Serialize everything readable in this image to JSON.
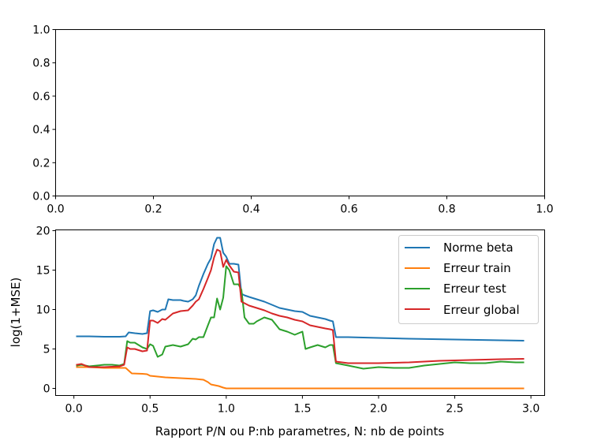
{
  "colors": {
    "norme_beta": "#1f77b4",
    "erreur_train": "#ff7f0e",
    "erreur_test": "#2ca02c",
    "erreur_global": "#d62728",
    "legend_border": "#cccccc"
  },
  "chart_data": [
    {
      "type": "line",
      "title": "",
      "xlabel": "",
      "ylabel": "",
      "xlim": [
        0,
        1
      ],
      "ylim": [
        0,
        1
      ],
      "xticks": [
        0.0,
        0.2,
        0.4,
        0.6,
        0.8,
        1.0
      ],
      "yticks": [
        0.0,
        0.2,
        0.4,
        0.6,
        0.8,
        1.0
      ],
      "xtick_labels": [
        "0.0",
        "0.2",
        "0.4",
        "0.6",
        "0.8",
        "1.0"
      ],
      "ytick_labels": [
        "0.0",
        "0.2",
        "0.4",
        "0.6",
        "0.8",
        "1.0"
      ],
      "grid": false,
      "series": []
    },
    {
      "type": "line",
      "title": "",
      "xlabel": "Rapport P/N ou P:nb parametres, N: nb de points",
      "ylabel": "log(1+MSE)",
      "xlim": [
        -0.12,
        3.09
      ],
      "ylim": [
        -0.9,
        20.1
      ],
      "xticks": [
        0.0,
        0.5,
        1.0,
        1.5,
        2.0,
        2.5,
        3.0
      ],
      "yticks": [
        0,
        5,
        10,
        15,
        20
      ],
      "xtick_labels": [
        "0.0",
        "0.5",
        "1.0",
        "1.5",
        "2.0",
        "2.5",
        "3.0"
      ],
      "ytick_labels": [
        "0",
        "5",
        "10",
        "15",
        "20"
      ],
      "grid": false,
      "legend_position": "top-right",
      "series": [
        {
          "name": "Norme beta",
          "color": "#1f77b4",
          "x": [
            0.02,
            0.1,
            0.2,
            0.3,
            0.34,
            0.36,
            0.4,
            0.45,
            0.48,
            0.5,
            0.52,
            0.55,
            0.58,
            0.6,
            0.62,
            0.65,
            0.7,
            0.72,
            0.75,
            0.78,
            0.8,
            0.82,
            0.85,
            0.88,
            0.9,
            0.92,
            0.94,
            0.96,
            0.98,
            1.0,
            1.02,
            1.05,
            1.08,
            1.1,
            1.12,
            1.15,
            1.2,
            1.25,
            1.3,
            1.35,
            1.4,
            1.45,
            1.5,
            1.55,
            1.6,
            1.65,
            1.68,
            1.7,
            1.72,
            1.8,
            2.0,
            2.2,
            2.5,
            2.8,
            2.95
          ],
          "y": [
            6.6,
            6.6,
            6.55,
            6.55,
            6.6,
            7.1,
            7.0,
            6.9,
            7.0,
            9.8,
            9.9,
            9.7,
            10.0,
            10.0,
            11.3,
            11.2,
            11.2,
            11.1,
            11.0,
            11.3,
            11.8,
            13.0,
            14.5,
            15.8,
            16.5,
            18.3,
            19.1,
            19.1,
            17.2,
            16.7,
            15.8,
            15.8,
            15.7,
            12.0,
            11.8,
            11.6,
            11.3,
            11.0,
            10.6,
            10.2,
            10.0,
            9.8,
            9.7,
            9.2,
            9.0,
            8.8,
            8.6,
            8.5,
            6.5,
            6.5,
            6.4,
            6.3,
            6.2,
            6.1,
            6.05
          ]
        },
        {
          "name": "Erreur train",
          "color": "#ff7f0e",
          "x": [
            0.02,
            0.1,
            0.2,
            0.3,
            0.34,
            0.38,
            0.45,
            0.48,
            0.5,
            0.6,
            0.7,
            0.8,
            0.85,
            0.88,
            0.9,
            0.95,
            0.98,
            1.0,
            1.05,
            1.5,
            2.0,
            2.5,
            2.95
          ],
          "y": [
            2.7,
            2.7,
            2.6,
            2.6,
            2.6,
            1.9,
            1.85,
            1.8,
            1.6,
            1.4,
            1.3,
            1.2,
            1.1,
            0.8,
            0.5,
            0.3,
            0.1,
            0.0,
            0.0,
            0.0,
            0.0,
            0.0,
            0.0
          ]
        },
        {
          "name": "Erreur test",
          "color": "#2ca02c",
          "x": [
            0.02,
            0.05,
            0.1,
            0.2,
            0.25,
            0.3,
            0.33,
            0.35,
            0.37,
            0.4,
            0.45,
            0.48,
            0.5,
            0.52,
            0.55,
            0.58,
            0.6,
            0.65,
            0.7,
            0.75,
            0.78,
            0.8,
            0.82,
            0.85,
            0.88,
            0.9,
            0.92,
            0.94,
            0.96,
            0.98,
            1.0,
            1.02,
            1.05,
            1.08,
            1.1,
            1.12,
            1.15,
            1.18,
            1.2,
            1.25,
            1.3,
            1.35,
            1.4,
            1.45,
            1.5,
            1.52,
            1.55,
            1.6,
            1.65,
            1.68,
            1.7,
            1.72,
            1.8,
            1.9,
            2.0,
            2.1,
            2.2,
            2.3,
            2.4,
            2.5,
            2.6,
            2.7,
            2.8,
            2.9,
            2.95
          ],
          "y": [
            2.9,
            3.0,
            2.8,
            3.0,
            3.0,
            2.9,
            3.1,
            6.0,
            5.8,
            5.8,
            5.2,
            5.0,
            5.6,
            5.4,
            4.0,
            4.3,
            5.3,
            5.5,
            5.3,
            5.6,
            6.3,
            6.2,
            6.5,
            6.5,
            8.0,
            9.0,
            9.0,
            11.4,
            10.0,
            11.5,
            15.5,
            15.0,
            13.2,
            13.2,
            12.5,
            9.0,
            8.2,
            8.2,
            8.5,
            9.0,
            8.7,
            7.5,
            7.2,
            6.8,
            7.2,
            5.0,
            5.2,
            5.5,
            5.2,
            5.5,
            5.5,
            3.2,
            2.9,
            2.5,
            2.7,
            2.6,
            2.6,
            2.9,
            3.1,
            3.3,
            3.2,
            3.2,
            3.4,
            3.3,
            3.3
          ]
        },
        {
          "name": "Erreur global",
          "color": "#d62728",
          "x": [
            0.02,
            0.05,
            0.1,
            0.2,
            0.3,
            0.33,
            0.35,
            0.37,
            0.4,
            0.45,
            0.48,
            0.5,
            0.52,
            0.55,
            0.58,
            0.6,
            0.65,
            0.7,
            0.75,
            0.78,
            0.8,
            0.82,
            0.85,
            0.88,
            0.9,
            0.92,
            0.94,
            0.96,
            0.98,
            1.0,
            1.02,
            1.05,
            1.08,
            1.1,
            1.12,
            1.15,
            1.2,
            1.25,
            1.3,
            1.35,
            1.4,
            1.45,
            1.5,
            1.55,
            1.6,
            1.65,
            1.68,
            1.7,
            1.72,
            1.8,
            2.0,
            2.2,
            2.4,
            2.6,
            2.8,
            2.95
          ],
          "y": [
            3.0,
            3.1,
            2.7,
            2.7,
            2.8,
            3.0,
            5.2,
            5.0,
            5.0,
            4.7,
            4.8,
            8.6,
            8.6,
            8.3,
            8.8,
            8.7,
            9.5,
            9.8,
            9.9,
            10.5,
            11.0,
            11.3,
            12.6,
            14.0,
            15.0,
            16.6,
            17.6,
            17.4,
            15.4,
            16.3,
            15.6,
            14.8,
            14.7,
            11.0,
            10.8,
            10.5,
            10.2,
            9.9,
            9.5,
            9.2,
            9.0,
            8.7,
            8.5,
            8.0,
            7.8,
            7.6,
            7.5,
            7.4,
            3.4,
            3.2,
            3.2,
            3.3,
            3.5,
            3.6,
            3.7,
            3.75
          ]
        }
      ]
    }
  ]
}
